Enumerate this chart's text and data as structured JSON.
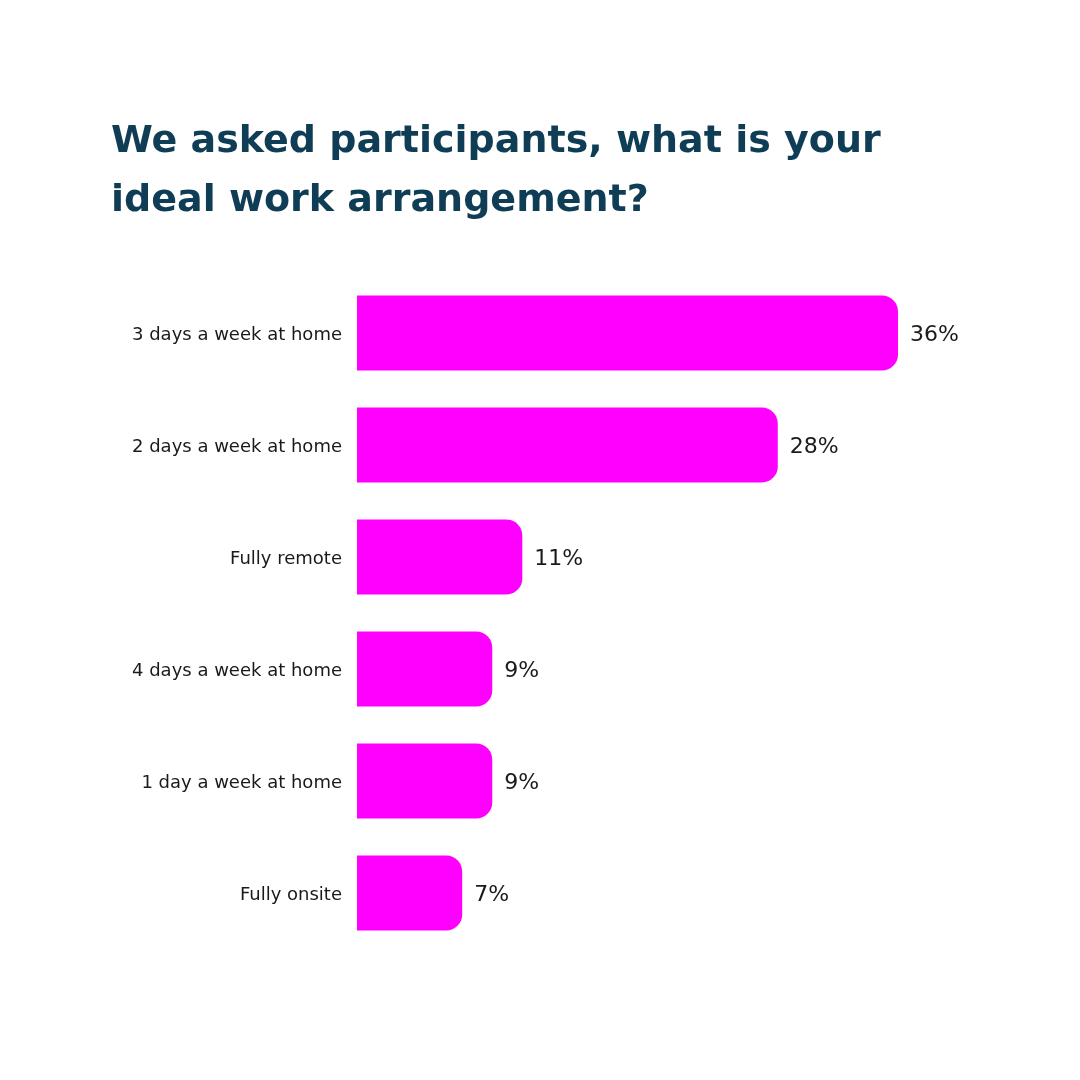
{
  "chart_data": {
    "type": "bar",
    "orientation": "horizontal",
    "title": "We asked participants, what is your ideal work arrangement?",
    "categories": [
      "3 days a week at home",
      "2 days a week at home",
      "Fully remote",
      "4 days a week at home",
      "1 day a week at home",
      "Fully onsite"
    ],
    "values": [
      36,
      28,
      11,
      9,
      9,
      7
    ],
    "color": "#ff00ff",
    "value_labels": [
      "36%",
      "28%",
      "11%",
      "9%",
      "9%",
      "7%"
    ]
  }
}
